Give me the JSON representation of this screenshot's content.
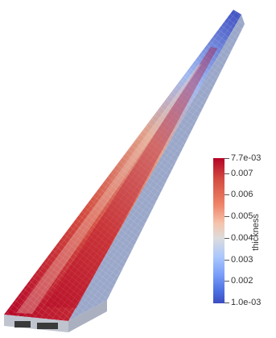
{
  "colorbar": {
    "title": "thickness",
    "max_label": "7.7e-03",
    "min_label": "1.0e-03",
    "ticks": [
      {
        "value": 0.007,
        "label": "0.007"
      },
      {
        "value": 0.006,
        "label": "0.006"
      },
      {
        "value": 0.005,
        "label": "0.005"
      },
      {
        "value": 0.004,
        "label": "0.004"
      },
      {
        "value": 0.003,
        "label": "0.003"
      },
      {
        "value": 0.002,
        "label": "0.002"
      }
    ],
    "range": [
      0.001,
      0.0077
    ],
    "colormap": [
      "#3b4cc0",
      "#7b9ff9",
      "#dddcdc",
      "#ee8468",
      "#b40426"
    ]
  }
}
